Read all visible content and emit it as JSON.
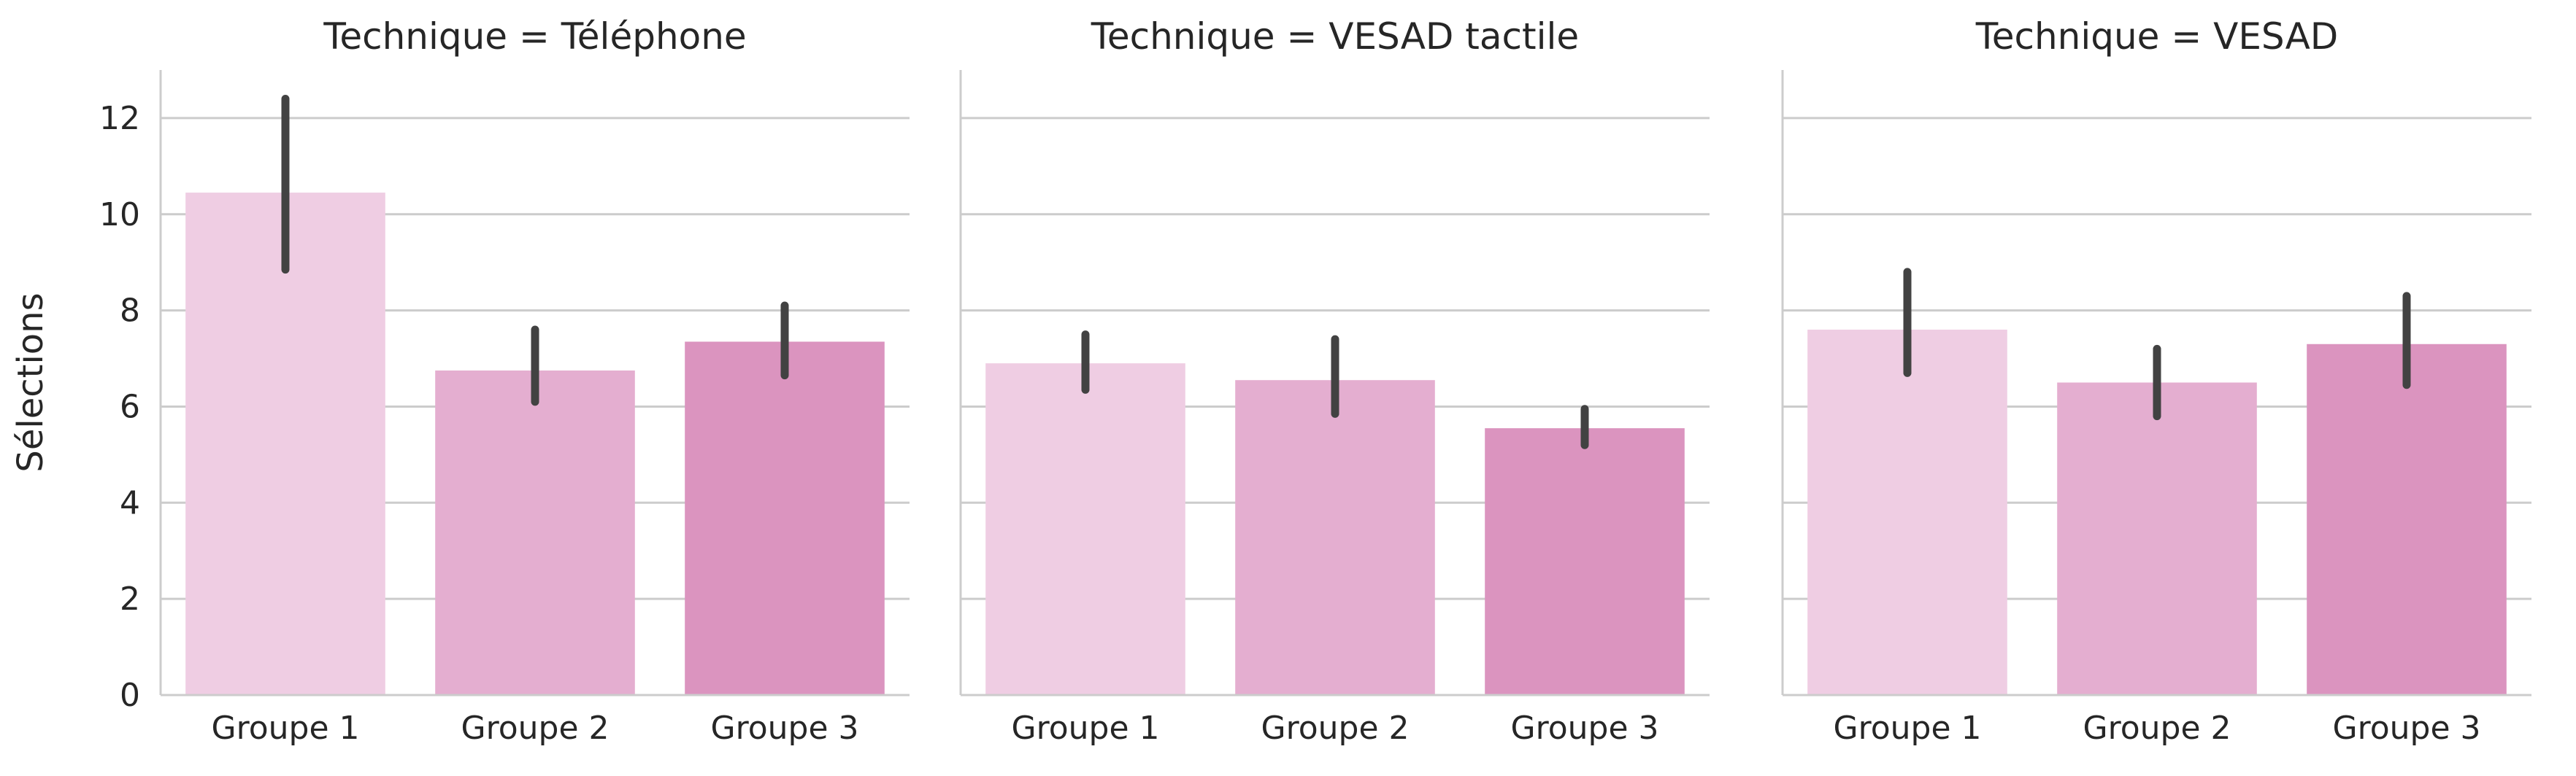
{
  "chart_data": {
    "type": "bar",
    "facet_variable": "Technique",
    "ylabel": "Sélections",
    "ylim": [
      0,
      13
    ],
    "yticks": [
      0,
      2,
      4,
      6,
      8,
      10,
      12
    ],
    "categories": [
      "Groupe 1",
      "Groupe 2",
      "Groupe 3"
    ],
    "category_colors": [
      "#efcde3",
      "#e4aed0",
      "#db94bf"
    ],
    "errorbar_color": "#424242",
    "grid": true,
    "panels": [
      {
        "title": "Technique = Téléphone",
        "values": [
          10.45,
          6.75,
          7.35
        ],
        "ci": [
          [
            8.85,
            12.4
          ],
          [
            6.1,
            7.6
          ],
          [
            6.65,
            8.1
          ]
        ]
      },
      {
        "title": "Technique = VESAD tactile",
        "values": [
          6.9,
          6.55,
          5.55
        ],
        "ci": [
          [
            6.35,
            7.5
          ],
          [
            5.85,
            7.4
          ],
          [
            5.2,
            5.95
          ]
        ]
      },
      {
        "title": "Technique = VESAD",
        "values": [
          7.6,
          6.5,
          7.3
        ],
        "ci": [
          [
            6.7,
            8.8
          ],
          [
            5.8,
            7.2
          ],
          [
            6.45,
            8.3
          ]
        ]
      }
    ]
  }
}
